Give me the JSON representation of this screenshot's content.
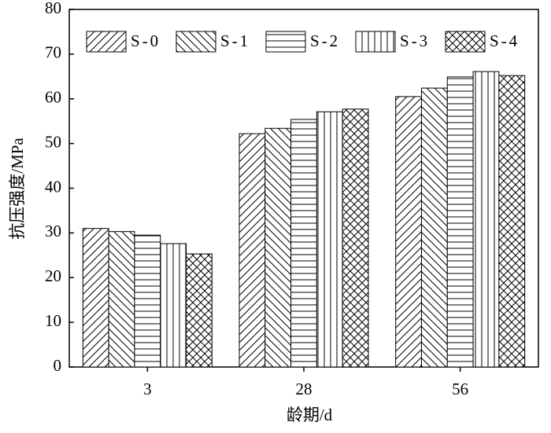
{
  "chart_data": {
    "type": "bar",
    "x_label": "龄期/d",
    "y_label": "抗压强度/MPa",
    "categories": [
      "3",
      "28",
      "56"
    ],
    "series": [
      {
        "name": "S-0",
        "color": "#000000",
        "pattern": "forward-diagonal",
        "values": [
          31.0,
          52.2,
          60.5
        ]
      },
      {
        "name": "S-1",
        "color": "#000000",
        "pattern": "backward-diagonal",
        "values": [
          30.3,
          53.4,
          62.4
        ]
      },
      {
        "name": "S-2",
        "color": "#000000",
        "pattern": "horizontal",
        "values": [
          29.5,
          55.4,
          64.9
        ]
      },
      {
        "name": "S-3",
        "color": "#000000",
        "pattern": "vertical",
        "values": [
          27.6,
          57.1,
          66.1
        ]
      },
      {
        "name": "S-4",
        "color": "#000000",
        "pattern": "crosshatch",
        "values": [
          25.3,
          57.7,
          65.2
        ]
      }
    ],
    "ylim": [
      0,
      80
    ],
    "yticks": [
      0,
      10,
      20,
      30,
      40,
      50,
      60,
      70,
      80
    ],
    "grid": false,
    "legend": "top"
  }
}
